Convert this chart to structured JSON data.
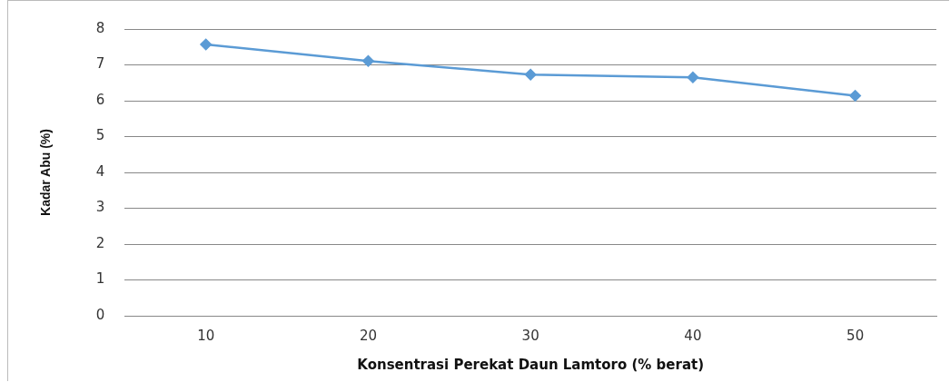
{
  "chart_data": {
    "type": "line",
    "xlabel": "Konsentrasi Perekat Daun Lamtoro (% berat)",
    "ylabel": "Kadar Abu (%)",
    "categories": [
      "10",
      "20",
      "30",
      "40",
      "50"
    ],
    "series": [
      {
        "color": "#5b9bd5",
        "values": [
          7.57,
          7.11,
          6.73,
          6.65,
          6.14
        ]
      }
    ],
    "ylim": [
      0,
      8
    ],
    "yticks": [
      0,
      1,
      2,
      3,
      4,
      5,
      6,
      7,
      8
    ],
    "grid": "y",
    "legend": false,
    "marker": "diamond"
  }
}
